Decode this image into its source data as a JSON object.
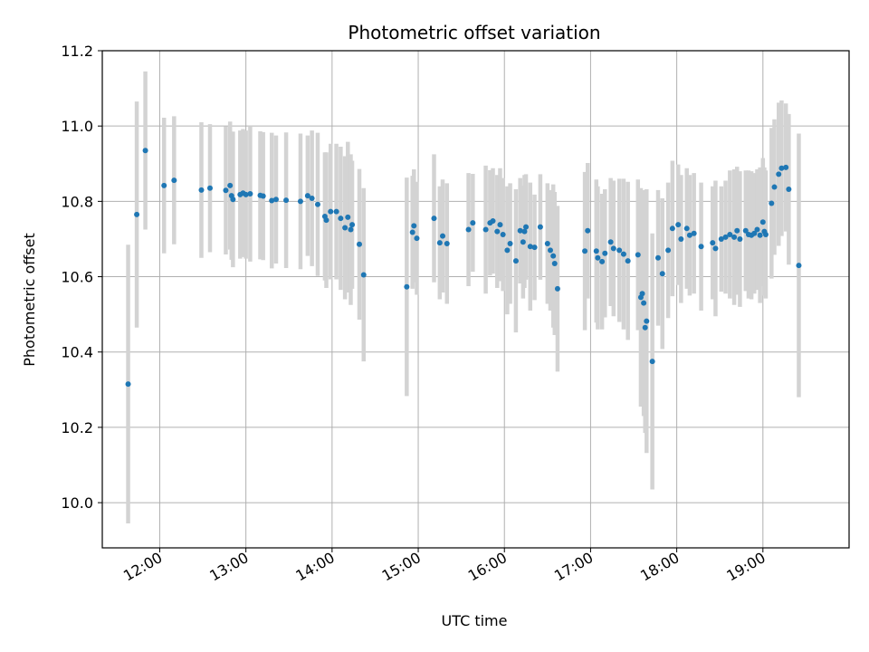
{
  "chart_data": {
    "type": "scatter",
    "title": "Photometric offset variation",
    "xlabel": "UTC time",
    "ylabel": "Photometric offset",
    "grid": true,
    "legend": "none",
    "xlim": [
      "11:20",
      "20:00"
    ],
    "ylim": [
      9.88,
      11.2
    ],
    "x_ticks": [
      "12:00",
      "13:00",
      "14:00",
      "15:00",
      "16:00",
      "17:00",
      "18:00",
      "19:00"
    ],
    "y_ticks": [
      10.0,
      10.2,
      10.4,
      10.6,
      10.8,
      11.0,
      11.2
    ],
    "y_tick_labels": [
      "10.0",
      "10.2",
      "10.4",
      "10.6",
      "10.8",
      "11.0",
      "11.2"
    ],
    "colors": {
      "points": "#1f77b4",
      "errorbars": "#d3d3d3",
      "grid": "#b0b0b0"
    },
    "series": [
      {
        "x": [
          "11:38",
          "11:44",
          "11:50",
          "12:03",
          "12:10",
          "12:29",
          "12:35",
          "12:46",
          "12:49",
          "12:50",
          "12:51",
          "12:56",
          "12:58",
          "13:00",
          "13:03",
          "13:10",
          "13:12",
          "13:18",
          "13:21",
          "13:28",
          "13:38",
          "13:43",
          "13:46",
          "13:50",
          "13:55",
          "13:56",
          "13:59",
          "14:03",
          "14:06",
          "14:09",
          "14:11",
          "14:13",
          "14:14",
          "14:19",
          "14:22",
          "14:52",
          "14:56",
          "14:57",
          "14:59",
          "15:11",
          "15:15",
          "15:17",
          "15:20",
          "15:35",
          "15:38",
          "15:47",
          "15:50",
          "15:52",
          "15:55",
          "15:57",
          "15:59",
          "16:02",
          "16:04",
          "16:08",
          "16:11",
          "16:13",
          "16:14",
          "16:15",
          "16:18",
          "16:21",
          "16:25",
          "16:30",
          "16:32",
          "16:34",
          "16:35",
          "16:37",
          "16:56",
          "16:58",
          "17:04",
          "17:05",
          "17:08",
          "17:10",
          "17:14",
          "17:16",
          "17:20",
          "17:23",
          "17:26",
          "17:33",
          "17:35",
          "17:36",
          "17:37",
          "17:38",
          "17:39",
          "17:43",
          "17:47",
          "17:50",
          "17:54",
          "17:57",
          "18:01",
          "18:03",
          "18:07",
          "18:09",
          "18:12",
          "18:17",
          "18:25",
          "18:27",
          "18:31",
          "18:34",
          "18:37",
          "18:40",
          "18:42",
          "18:44",
          "18:48",
          "18:50",
          "18:52",
          "18:54",
          "18:56",
          "18:58",
          "19:00",
          "19:01",
          "19:02",
          "19:06",
          "19:08",
          "19:11",
          "19:13",
          "19:16",
          "19:18",
          "19:25"
        ],
        "y": [
          10.315,
          10.765,
          10.935,
          10.842,
          10.856,
          10.83,
          10.835,
          10.829,
          10.842,
          10.815,
          10.805,
          10.818,
          10.822,
          10.818,
          10.82,
          10.816,
          10.814,
          10.802,
          10.805,
          10.803,
          10.8,
          10.815,
          10.808,
          10.792,
          10.76,
          10.75,
          10.773,
          10.773,
          10.755,
          10.73,
          10.758,
          10.725,
          10.738,
          10.686,
          10.605,
          10.573,
          10.718,
          10.735,
          10.702,
          10.755,
          10.69,
          10.708,
          10.688,
          10.725,
          10.743,
          10.725,
          10.743,
          10.748,
          10.72,
          10.738,
          10.712,
          10.67,
          10.688,
          10.642,
          10.722,
          10.692,
          10.72,
          10.732,
          10.68,
          10.678,
          10.732,
          10.688,
          10.67,
          10.655,
          10.635,
          10.568,
          10.668,
          10.722,
          10.668,
          10.65,
          10.64,
          10.662,
          10.692,
          10.675,
          10.67,
          10.66,
          10.642,
          10.658,
          10.545,
          10.555,
          10.53,
          10.465,
          10.482,
          10.375,
          10.65,
          10.608,
          10.67,
          10.728,
          10.738,
          10.7,
          10.728,
          10.71,
          10.715,
          10.68,
          10.69,
          10.675,
          10.7,
          10.705,
          10.712,
          10.705,
          10.722,
          10.7,
          10.722,
          10.712,
          10.71,
          10.715,
          10.725,
          10.71,
          10.745,
          10.72,
          10.712,
          10.795,
          10.838,
          10.872,
          10.888,
          10.89,
          10.832,
          10.63
        ],
        "yerr": [
          0.37,
          0.3,
          0.21,
          0.18,
          0.17,
          0.18,
          0.17,
          0.17,
          0.17,
          0.17,
          0.18,
          0.17,
          0.17,
          0.17,
          0.18,
          0.17,
          0.17,
          0.18,
          0.17,
          0.18,
          0.18,
          0.16,
          0.18,
          0.19,
          0.17,
          0.18,
          0.18,
          0.18,
          0.19,
          0.19,
          0.2,
          0.2,
          0.17,
          0.2,
          0.23,
          0.29,
          0.15,
          0.15,
          0.15,
          0.17,
          0.15,
          0.15,
          0.16,
          0.15,
          0.13,
          0.17,
          0.14,
          0.14,
          0.15,
          0.15,
          0.15,
          0.17,
          0.16,
          0.19,
          0.14,
          0.15,
          0.15,
          0.14,
          0.17,
          0.14,
          0.14,
          0.16,
          0.16,
          0.19,
          0.19,
          0.22,
          0.21,
          0.18,
          0.19,
          0.19,
          0.18,
          0.17,
          0.17,
          0.18,
          0.19,
          0.2,
          0.21,
          0.2,
          0.29,
          0.27,
          0.3,
          0.28,
          0.35,
          0.34,
          0.18,
          0.2,
          0.18,
          0.18,
          0.16,
          0.17,
          0.16,
          0.16,
          0.16,
          0.17,
          0.15,
          0.18,
          0.14,
          0.15,
          0.17,
          0.18,
          0.17,
          0.18,
          0.16,
          0.17,
          0.17,
          0.16,
          0.16,
          0.18,
          0.17,
          0.17,
          0.17,
          0.2,
          0.18,
          0.19,
          0.18,
          0.17,
          0.2,
          0.35
        ]
      }
    ]
  }
}
